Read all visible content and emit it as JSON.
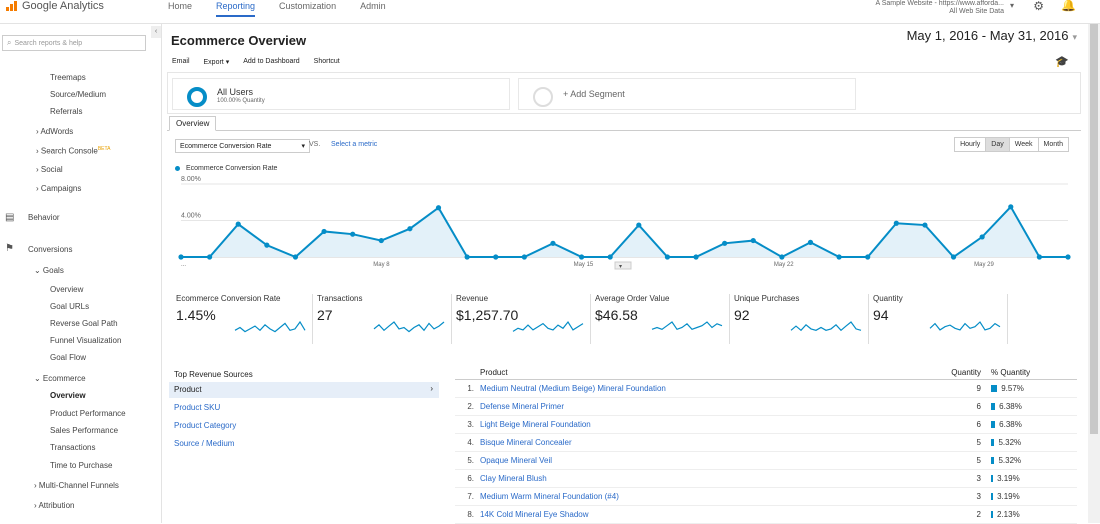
{
  "app": {
    "name": "Google Analytics"
  },
  "nav": {
    "items": [
      "Home",
      "Reporting",
      "Customization",
      "Admin"
    ],
    "active": "Reporting"
  },
  "account": {
    "line1": "A Sample Website - https://www.afforda...",
    "line2": "All Web Site Data"
  },
  "sidebar": {
    "search_placeholder": "Search reports & help",
    "items": [
      "Treemaps",
      "Source/Medium",
      "Referrals",
      "› AdWords",
      "› Search Console",
      "› Social",
      "› Campaigns",
      "Behavior",
      "Conversions",
      "⌄ Goals",
      "Overview",
      "Goal URLs",
      "Reverse Goal Path",
      "Funnel Visualization",
      "Goal Flow",
      "⌄ Ecommerce",
      "Overview",
      "Product Performance",
      "Sales Performance",
      "Transactions",
      "Time to Purchase",
      "› Multi-Channel Funnels",
      "› Attribution"
    ],
    "beta_badge": "BETA"
  },
  "page": {
    "title": "Ecommerce Overview",
    "date_range": "May 1, 2016 - May 31, 2016",
    "toolbar": [
      "Email",
      "Export ▾",
      "Add to Dashboard",
      "Shortcut"
    ]
  },
  "segments": {
    "active": {
      "title": "All Users",
      "sub": "100.00% Quantity"
    },
    "add": "+ Add Segment"
  },
  "tabs": {
    "overview": "Overview"
  },
  "chart_controls": {
    "metric": "Ecommerce Conversion Rate",
    "vs": "VS.",
    "select_metric": "Select a metric",
    "granularity": [
      "Hourly",
      "Day",
      "Week",
      "Month"
    ],
    "active_granularity": "Day",
    "legend": "Ecommerce Conversion Rate"
  },
  "chart_data": {
    "type": "area",
    "title": "",
    "series": [
      {
        "name": "Ecommerce Conversion Rate",
        "color": "#058dc7",
        "values": [
          0,
          0,
          3.6,
          1.3,
          0,
          2.8,
          2.5,
          1.8,
          3.1,
          5.4,
          0,
          0,
          0,
          1.5,
          0,
          0,
          3.5,
          0,
          0,
          1.5,
          1.8,
          0,
          1.6,
          0,
          0,
          3.7,
          3.5,
          0,
          2.2,
          5.5,
          0,
          0
        ]
      }
    ],
    "y_ticks": [
      "8.00%",
      "4.00%"
    ],
    "x_ticks": [
      "...",
      "May 8",
      "May 15",
      "May 22",
      "May 29"
    ],
    "ylim": [
      0,
      8
    ]
  },
  "scorecards": [
    {
      "label": "Ecommerce Conversion Rate",
      "value": "1.45%",
      "spark": [
        2,
        4,
        1,
        3,
        5,
        2,
        6,
        3,
        1,
        4,
        7,
        2,
        3,
        8,
        2
      ]
    },
    {
      "label": "Transactions",
      "value": "27",
      "spark": [
        3,
        6,
        2,
        5,
        8,
        3,
        4,
        1,
        4,
        6,
        2,
        7,
        3,
        5,
        8
      ]
    },
    {
      "label": "Revenue",
      "value": "$1,257.70",
      "spark": [
        1,
        3,
        2,
        5,
        2,
        4,
        6,
        3,
        2,
        5,
        3,
        7,
        2,
        4,
        6
      ]
    },
    {
      "label": "Average Order Value",
      "value": "$46.58",
      "spark": [
        2,
        3,
        2,
        4,
        6,
        2,
        3,
        5,
        2,
        3,
        4,
        6,
        3,
        5,
        4
      ]
    },
    {
      "label": "Unique Purchases",
      "value": "92",
      "spark": [
        2,
        5,
        2,
        6,
        3,
        2,
        4,
        2,
        3,
        6,
        2,
        5,
        8,
        3,
        2
      ]
    },
    {
      "label": "Quantity",
      "value": "94",
      "spark": [
        3,
        6,
        2,
        4,
        5,
        3,
        2,
        6,
        3,
        4,
        7,
        2,
        3,
        6,
        4
      ]
    }
  ],
  "sources": {
    "title": "Top Revenue Sources",
    "items": [
      "Product",
      "Product SKU",
      "Product Category",
      "Source / Medium"
    ],
    "active": "Product"
  },
  "products": {
    "headers": {
      "product": "Product",
      "qty": "Quantity",
      "pct": "% Quantity"
    },
    "rows": [
      {
        "n": "1.",
        "name": "Medium Neutral (Medium Beige) Mineral Foundation",
        "qty": "9",
        "pct": "9.57%",
        "p": 9.57
      },
      {
        "n": "2.",
        "name": "Defense Mineral Primer",
        "qty": "6",
        "pct": "6.38%",
        "p": 6.38
      },
      {
        "n": "3.",
        "name": "Light Beige Mineral Foundation",
        "qty": "6",
        "pct": "6.38%",
        "p": 6.38
      },
      {
        "n": "4.",
        "name": "Bisque Mineral Concealer",
        "qty": "5",
        "pct": "5.32%",
        "p": 5.32
      },
      {
        "n": "5.",
        "name": "Opaque Mineral Veil",
        "qty": "5",
        "pct": "5.32%",
        "p": 5.32
      },
      {
        "n": "6.",
        "name": "Clay Mineral Blush",
        "qty": "3",
        "pct": "3.19%",
        "p": 3.19
      },
      {
        "n": "7.",
        "name": "Medium Warm Mineral Foundation (#4)",
        "qty": "3",
        "pct": "3.19%",
        "p": 3.19
      },
      {
        "n": "8.",
        "name": "14K Cold Mineral Eye Shadow",
        "qty": "2",
        "pct": "2.13%",
        "p": 2.13
      }
    ]
  }
}
